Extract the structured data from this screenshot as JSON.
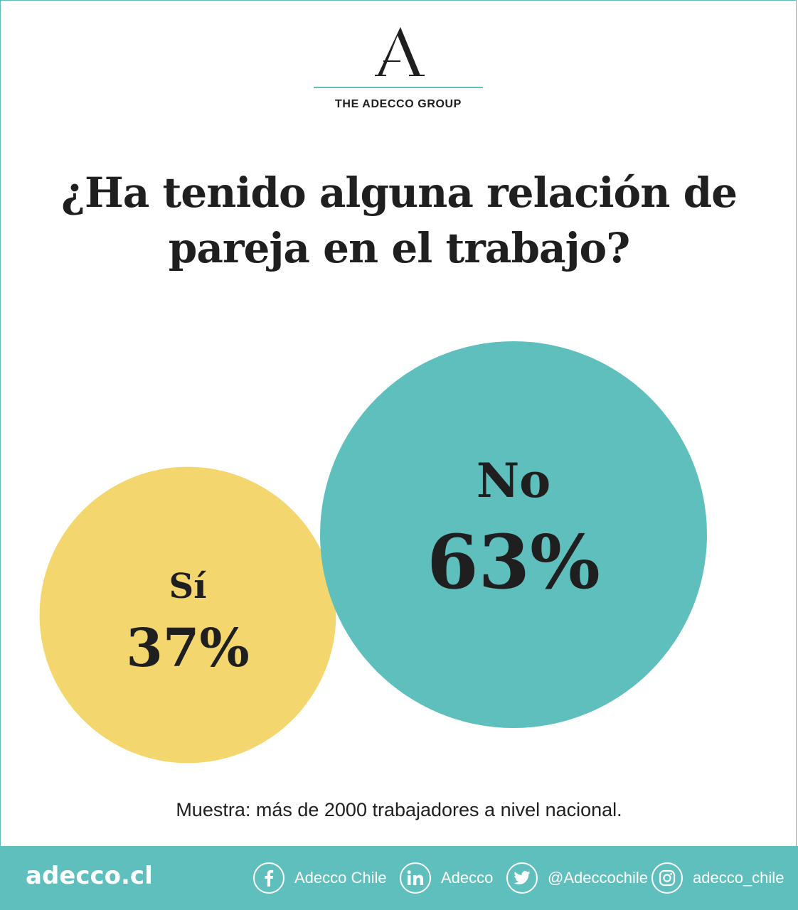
{
  "brand": {
    "logo_letter": "A",
    "logo_text": "THE ADECCO GROUP"
  },
  "title_lines": [
    "¿Ha tenido alguna relación de",
    "pareja en el trabajo?"
  ],
  "chart_data": {
    "type": "bubble",
    "title": "¿Ha tenido alguna relación de pareja en el trabajo?",
    "categories": [
      "Sí",
      "No"
    ],
    "values": [
      37,
      63
    ],
    "unit": "%",
    "value_labels": [
      "37%",
      "63%"
    ],
    "colors": [
      "#f3d66d",
      "#5fbfbd"
    ]
  },
  "footnote": "Muestra: más de 2000 trabajadores a nivel nacional.",
  "footer": {
    "site": "adecco.cl",
    "social": [
      {
        "icon": "facebook-icon",
        "label": "Adecco Chile"
      },
      {
        "icon": "linkedin-icon",
        "label": "Adecco"
      },
      {
        "icon": "twitter-icon",
        "label": "@Adeccochile"
      },
      {
        "icon": "instagram-icon",
        "label": "adecco_chile"
      }
    ]
  },
  "colors": {
    "accent": "#5fbfbd",
    "yes": "#f3d66d",
    "text": "#1f1f1f"
  }
}
